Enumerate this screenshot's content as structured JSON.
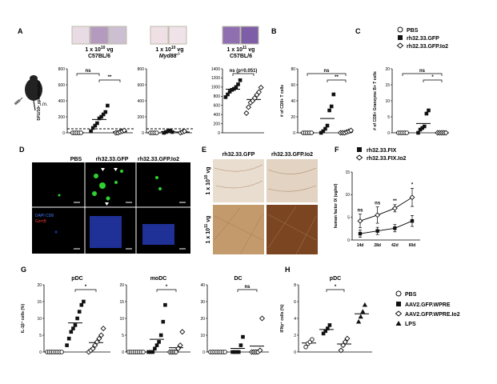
{
  "panel_letters": [
    "A",
    "B",
    "C",
    "D",
    "E",
    "F",
    "G",
    "H"
  ],
  "panel_a": {
    "well_groups": [
      {
        "line1": "1 x 10",
        "exp": "10",
        "line1_suffix": " vg",
        "line2": "C57BL/6"
      },
      {
        "line1": "1 x 10",
        "exp": "10",
        "line1_suffix": " vg",
        "line2": "Myd88",
        "line2_sup": "-/-"
      },
      {
        "line1": "1 x 10",
        "exp": "11",
        "line1_suffix": " vg",
        "line2": "C57BL/6"
      }
    ],
    "route_label": "i.m."
  },
  "panel_d": {
    "col_labels": [
      "PBS",
      "rh32.33.GFP",
      "rh32.33.GFP.Io2"
    ],
    "legend_top": "DAPI CD8",
    "legend_bottom": "GzmB"
  },
  "panel_e": {
    "col_labels": [
      "rh32.33.GFP",
      "rh32.33.GFP.Io2"
    ],
    "row_labels": [
      {
        "base": "1 x 10",
        "exp": "10",
        "suffix": " vg"
      },
      {
        "base": "1 x 10",
        "exp": "11",
        "suffix": " vg"
      }
    ]
  },
  "legend_bc": {
    "items": [
      "PBS",
      "rh32.33.GFP",
      "rh32.33.GFP.Io2"
    ]
  },
  "legend_f": {
    "items": [
      "rh32.33.FIX",
      "rh32.33.FIX.Io2"
    ]
  },
  "legend_gh": {
    "items": [
      "PBS",
      "AAV2.GFP.WPRE",
      "AAV2.GFP.WPRE.Io2",
      "LPS"
    ]
  },
  "colors": {
    "dark_marker": "#111111",
    "axis": "#000000",
    "dashed_line": "#000000"
  },
  "chart_data": [
    {
      "id": "A1",
      "type": "scatter",
      "panel": "A",
      "title": "",
      "ylabel": "SFU/10⁶ splenocytes",
      "ylim": [
        0,
        800
      ],
      "yticks": [
        0,
        200,
        400,
        600,
        800
      ],
      "groups": [
        {
          "marker": "open-circle",
          "values": [
            0,
            0,
            0,
            0,
            0
          ]
        },
        {
          "marker": "filled-square",
          "values": [
            20,
            60,
            90,
            120,
            180,
            200,
            230,
            260,
            340
          ]
        },
        {
          "marker": "open-diamond",
          "values": [
            0,
            0,
            10,
            20,
            30
          ]
        }
      ],
      "threshold_dashed": 50,
      "annotations": [
        {
          "text": "ns",
          "pair": [
            0,
            1
          ]
        },
        {
          "text": "**",
          "pair": [
            1,
            2
          ]
        }
      ]
    },
    {
      "id": "A2",
      "type": "scatter",
      "panel": "A",
      "title": "",
      "ylabel": "",
      "ylim": [
        0,
        800
      ],
      "yticks": [
        0,
        200,
        400,
        600,
        800
      ],
      "groups": [
        {
          "marker": "open-circle",
          "values": [
            0,
            0,
            0,
            0
          ]
        },
        {
          "marker": "filled-square",
          "values": [
            0,
            10,
            20,
            30,
            10
          ]
        },
        {
          "marker": "open-diamond",
          "values": [
            0,
            10,
            20
          ]
        }
      ],
      "threshold_dashed": 50,
      "annotations": []
    },
    {
      "id": "A3",
      "type": "scatter",
      "panel": "A",
      "title": "",
      "ylabel": "",
      "ylim": [
        0,
        1400
      ],
      "yticks": [
        0,
        200,
        400,
        600,
        800,
        1000,
        1200,
        1400
      ],
      "groups": [
        {
          "marker": "filled-square",
          "values": [
            780,
            840,
            900,
            940,
            960,
            1000,
            1060,
            1150
          ]
        },
        {
          "marker": "open-diamond",
          "values": [
            430,
            560,
            660,
            700,
            760,
            830,
            890,
            990
          ]
        }
      ],
      "annotations": [
        {
          "text": "ns (p=0.051)",
          "pair": [
            0,
            1
          ]
        }
      ]
    },
    {
      "id": "B",
      "type": "scatter",
      "panel": "B",
      "title": "",
      "ylabel": "# of CD8+ T cells",
      "ylim": [
        0,
        80
      ],
      "yticks": [
        0,
        20,
        40,
        60,
        80
      ],
      "groups": [
        {
          "marker": "open-circle",
          "values": [
            0,
            0,
            0,
            0,
            0
          ]
        },
        {
          "marker": "filled-square",
          "values": [
            0,
            2,
            5,
            9,
            28,
            33,
            48
          ]
        },
        {
          "marker": "open-diamond",
          "values": [
            0,
            0,
            0,
            1,
            2,
            3
          ]
        }
      ],
      "annotations": [
        {
          "text": "ns",
          "pair": [
            0,
            2
          ]
        },
        {
          "text": "**",
          "pair": [
            1,
            2
          ]
        }
      ]
    },
    {
      "id": "C",
      "type": "scatter",
      "panel": "C",
      "title": "",
      "ylabel": "# of CD8+ Granzyme B+ T cells",
      "ylim": [
        0,
        20
      ],
      "yticks": [
        0,
        5,
        10,
        15,
        20
      ],
      "groups": [
        {
          "marker": "open-circle",
          "values": [
            0,
            0,
            0,
            0,
            0
          ]
        },
        {
          "marker": "filled-square",
          "values": [
            0,
            1,
            1.5,
            2,
            6,
            7
          ]
        },
        {
          "marker": "open-diamond",
          "values": [
            0,
            0,
            0,
            0,
            0
          ]
        }
      ],
      "annotations": [
        {
          "text": "ns",
          "pair": [
            0,
            2
          ]
        },
        {
          "text": "*",
          "pair": [
            1,
            2
          ]
        }
      ]
    },
    {
      "id": "F",
      "type": "line",
      "panel": "F",
      "title": "",
      "ylabel": "human factor IX (ug/ml)",
      "ylim": [
        0,
        15
      ],
      "yticks": [
        0,
        5,
        10,
        15
      ],
      "categories": [
        "14d",
        "28d",
        "42d",
        "60d"
      ],
      "series": [
        {
          "name": "rh32.33.FIX",
          "values": [
            1.4,
            2.0,
            2.6,
            4.2
          ],
          "err": [
            0.8,
            0.8,
            0.8,
            1.2
          ]
        },
        {
          "name": "rh32.33.FIX.Io2",
          "values": [
            4.2,
            5.5,
            7.0,
            9.4
          ],
          "err": [
            1.5,
            1.8,
            0.8,
            2.0
          ]
        }
      ],
      "annotations": [
        "ns",
        "ns",
        "**",
        "*"
      ]
    },
    {
      "id": "G1",
      "type": "scatter",
      "panel": "G",
      "title": "pDC",
      "ylabel": "IL-1β⁺ cells (%)",
      "ylim": [
        0,
        20
      ],
      "yticks": [
        0,
        5,
        10,
        15,
        20
      ],
      "groups": [
        {
          "marker": "open-circle",
          "values": [
            0,
            0,
            0,
            0,
            0,
            0,
            0,
            0
          ]
        },
        {
          "marker": "filled-square",
          "values": [
            2,
            4,
            6,
            7,
            8,
            10,
            12,
            14,
            15
          ]
        },
        {
          "marker": "open-diamond",
          "values": [
            0,
            0.5,
            1,
            2,
            3,
            4,
            5,
            7
          ]
        }
      ],
      "annotations": [
        {
          "text": "*",
          "pair": [
            1,
            2
          ]
        }
      ]
    },
    {
      "id": "G2",
      "type": "scatter",
      "panel": "G",
      "title": "moDC",
      "ylabel": "",
      "ylim": [
        0,
        20
      ],
      "yticks": [
        0,
        5,
        10,
        15,
        20
      ],
      "groups": [
        {
          "marker": "open-circle",
          "values": [
            0,
            0,
            0,
            0,
            0,
            0,
            0,
            0
          ]
        },
        {
          "marker": "filled-square",
          "values": [
            0,
            0,
            0,
            1,
            2,
            3,
            5,
            9,
            14
          ]
        },
        {
          "marker": "open-diamond",
          "values": [
            0,
            0,
            0,
            0,
            1,
            2,
            6
          ]
        }
      ],
      "annotations": [
        {
          "text": "*",
          "pair": [
            1,
            2
          ]
        }
      ]
    },
    {
      "id": "G3",
      "type": "scatter",
      "panel": "G",
      "title": "DC",
      "ylabel": "",
      "ylim": [
        0,
        40
      ],
      "yticks": [
        0,
        10,
        20,
        30,
        40
      ],
      "groups": [
        {
          "marker": "open-circle",
          "values": [
            0,
            0,
            0,
            0,
            0,
            0,
            0,
            0
          ]
        },
        {
          "marker": "filled-square",
          "values": [
            0,
            0,
            0,
            0,
            4,
            9
          ]
        },
        {
          "marker": "open-diamond",
          "values": [
            0,
            0,
            0,
            0,
            1,
            20
          ]
        }
      ],
      "annotations": [
        {
          "text": "ns",
          "pair": [
            1,
            2
          ]
        }
      ]
    },
    {
      "id": "H",
      "type": "scatter",
      "panel": "H",
      "title": "pDC",
      "ylabel": "IFNγ⁺ cells (%)",
      "ylim": [
        0,
        8
      ],
      "yticks": [
        0,
        2,
        4,
        6,
        8
      ],
      "groups": [
        {
          "marker": "open-circle",
          "values": [
            0.6,
            1.0,
            1.2,
            1.5
          ]
        },
        {
          "marker": "filled-square",
          "values": [
            2.2,
            2.5,
            2.8,
            3.2
          ]
        },
        {
          "marker": "open-diamond",
          "values": [
            0.2,
            0.8,
            1.2,
            1.6
          ]
        },
        {
          "marker": "filled-triangle",
          "values": [
            3.6,
            4.2,
            4.8,
            5.6
          ]
        }
      ],
      "annotations": [
        {
          "text": "*",
          "pair": [
            1,
            2
          ]
        }
      ]
    }
  ]
}
